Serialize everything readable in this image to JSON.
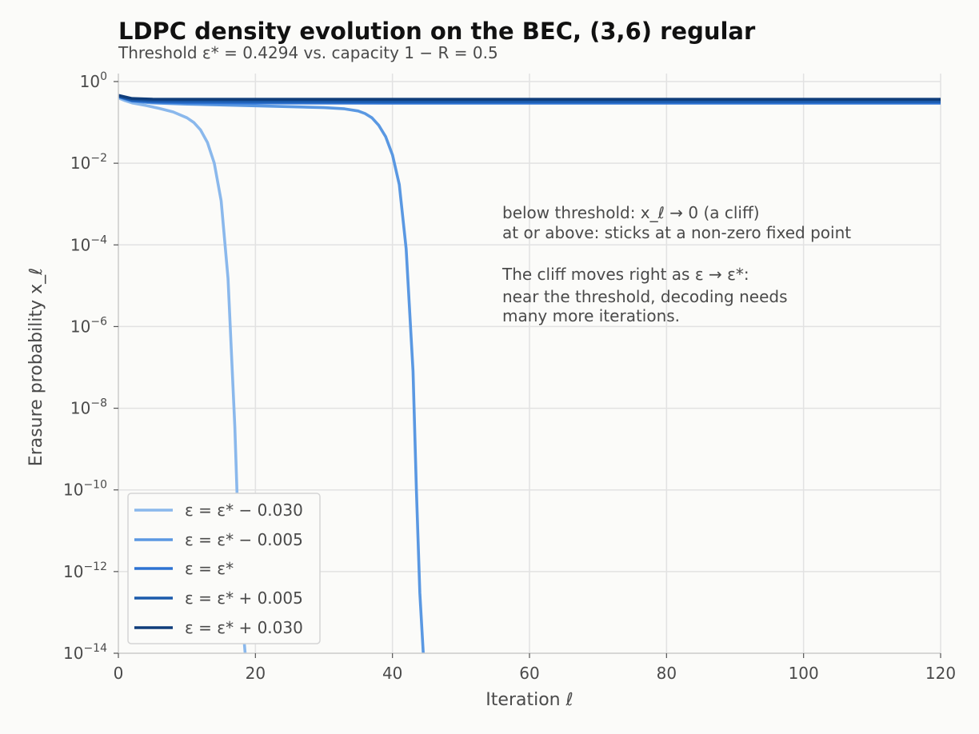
{
  "chart_data": {
    "type": "line",
    "title": "LDPC density evolution on the BEC, (3,6) regular",
    "subtitle": "Threshold ε* = 0.4294  vs. capacity 1 − R = 0.5",
    "xlabel": "Iteration ℓ",
    "ylabel": "Erasure probability x_ℓ",
    "xlim": [
      0,
      120
    ],
    "ylim": [
      1e-14,
      1
    ],
    "yscale": "log",
    "grid": true,
    "legend_position": "lower-left",
    "x_ticks": [
      "0",
      "20",
      "40",
      "60",
      "80",
      "100",
      "120"
    ],
    "y_ticks": [
      "10^0",
      "10^-2",
      "10^-4",
      "10^-6",
      "10^-8",
      "10^-10",
      "10^-12",
      "10^-14"
    ],
    "annotations": [
      "below threshold: x_ℓ → 0 (a cliff)",
      "at or above: sticks at a non-zero fixed point",
      "The cliff moves right as ε → ε*:",
      "near the threshold, decoding needs",
      "many more iterations."
    ],
    "series": [
      {
        "name": "ε = ε* − 0.030",
        "color": "#8ab8ec",
        "x": [
          0,
          1,
          2,
          4,
          6,
          8,
          10,
          11,
          12,
          13,
          14,
          15,
          16,
          17,
          17.5,
          18,
          18.5
        ],
        "y": [
          0.3994,
          0.34,
          0.3,
          0.26,
          0.22,
          0.18,
          0.13,
          0.1,
          0.065,
          0.032,
          0.01,
          0.0012,
          1.5e-05,
          3.5e-09,
          1e-11,
          1e-13,
          1e-14
        ]
      },
      {
        "name": "ε = ε* − 0.005",
        "color": "#5a98e2",
        "x": [
          0,
          2,
          5,
          10,
          20,
          30,
          33,
          35,
          36,
          37,
          38,
          39,
          40,
          41,
          42,
          43,
          43.5,
          44,
          44.5
        ],
        "y": [
          0.4244,
          0.33,
          0.3,
          0.28,
          0.255,
          0.23,
          0.215,
          0.19,
          0.165,
          0.13,
          0.085,
          0.045,
          0.016,
          0.003,
          8e-05,
          8e-08,
          1e-10,
          3e-13,
          1e-14
        ]
      },
      {
        "name": "ε = ε*",
        "color": "#2d72d2",
        "x": [
          0,
          2,
          5,
          10,
          20,
          40,
          80,
          120
        ],
        "y": [
          0.4294,
          0.34,
          0.315,
          0.305,
          0.3,
          0.298,
          0.298,
          0.298
        ]
      },
      {
        "name": "ε = ε* + 0.005",
        "color": "#1b5aab",
        "x": [
          0,
          2,
          5,
          10,
          20,
          40,
          80,
          120
        ],
        "y": [
          0.4344,
          0.355,
          0.335,
          0.33,
          0.328,
          0.327,
          0.327,
          0.327
        ]
      },
      {
        "name": "ε = ε* + 0.030",
        "color": "#0f3d7a",
        "x": [
          0,
          2,
          5,
          10,
          20,
          40,
          80,
          120
        ],
        "y": [
          0.4594,
          0.385,
          0.37,
          0.368,
          0.368,
          0.368,
          0.368,
          0.368
        ]
      }
    ]
  }
}
